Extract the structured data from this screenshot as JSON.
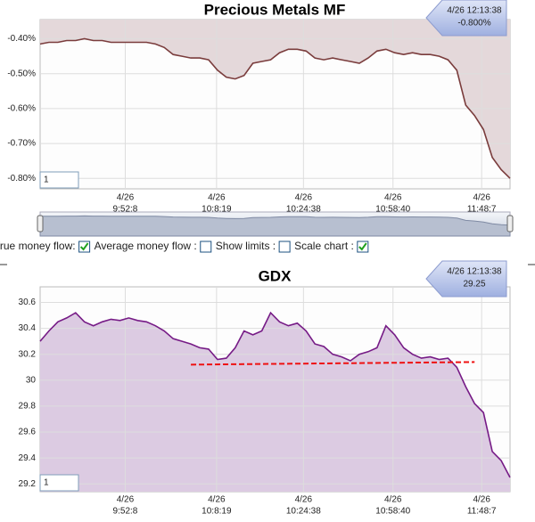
{
  "chart_data": [
    {
      "type": "line",
      "title": "Precious Metals MF",
      "values": [
        -0.415,
        -0.41,
        -0.41,
        -0.405,
        -0.405,
        -0.4,
        -0.405,
        -0.405,
        -0.41,
        -0.41,
        -0.41,
        -0.41,
        -0.41,
        -0.415,
        -0.425,
        -0.445,
        -0.45,
        -0.455,
        -0.455,
        -0.46,
        -0.49,
        -0.51,
        -0.515,
        -0.505,
        -0.47,
        -0.465,
        -0.46,
        -0.44,
        -0.43,
        -0.43,
        -0.435,
        -0.455,
        -0.46,
        -0.455,
        -0.46,
        -0.465,
        -0.47,
        -0.455,
        -0.435,
        -0.43,
        -0.44,
        -0.445,
        -0.44,
        -0.445,
        -0.445,
        -0.45,
        -0.46,
        -0.49,
        -0.59,
        -0.62,
        -0.66,
        -0.74,
        -0.775,
        -0.8
      ],
      "color": "#7a3c3c",
      "fill_color": "#e4d8da",
      "fill_to": "top",
      "xlim": [
        0,
        53
      ],
      "xticks": [
        {
          "value": 9.6,
          "label": [
            "4/26",
            "9:52:8"
          ]
        },
        {
          "value": 19.9,
          "label": [
            "4/26",
            "10:8:19"
          ]
        },
        {
          "value": 29.7,
          "label": [
            "4/26",
            "10:24:38"
          ]
        },
        {
          "value": 39.8,
          "label": [
            "4/26",
            "10:58:40"
          ]
        },
        {
          "value": 49.8,
          "label": [
            "4/26",
            "11:48:7"
          ]
        }
      ],
      "ylim": [
        -0.83,
        -0.345
      ],
      "yticks": [
        {
          "value": -0.4,
          "label": "-0.40%"
        },
        {
          "value": -0.5,
          "label": "-0.50%"
        },
        {
          "value": -0.6,
          "label": "-0.60%"
        },
        {
          "value": -0.7,
          "label": "-0.70%"
        },
        {
          "value": -0.8,
          "label": "-0.80%"
        }
      ],
      "grid": true,
      "last_time": "4/26 12:13:38",
      "last_value": "-0.800%",
      "zoom": "1"
    },
    {
      "type": "line",
      "title": "GDX",
      "values": [
        30.3,
        30.38,
        30.45,
        30.48,
        30.52,
        30.45,
        30.42,
        30.45,
        30.47,
        30.46,
        30.48,
        30.46,
        30.45,
        30.42,
        30.38,
        30.32,
        30.3,
        30.28,
        30.25,
        30.24,
        30.16,
        30.17,
        30.25,
        30.38,
        30.35,
        30.38,
        30.52,
        30.45,
        30.42,
        30.44,
        30.38,
        30.28,
        30.26,
        30.2,
        30.18,
        30.15,
        30.2,
        30.22,
        30.25,
        30.42,
        30.35,
        30.25,
        30.2,
        30.17,
        30.18,
        30.16,
        30.17,
        30.1,
        29.95,
        29.82,
        29.75,
        29.45,
        29.38,
        29.25
      ],
      "color": "#761b86",
      "fill_color": "#dccbe2",
      "fill_to": "bottom",
      "xlim": [
        0,
        53
      ],
      "xticks": [
        {
          "value": 9.6,
          "label": [
            "4/26",
            "9:52:8"
          ]
        },
        {
          "value": 19.9,
          "label": [
            "4/26",
            "10:8:19"
          ]
        },
        {
          "value": 29.7,
          "label": [
            "4/26",
            "10:24:38"
          ]
        },
        {
          "value": 39.8,
          "label": [
            "4/26",
            "10:58:40"
          ]
        },
        {
          "value": 49.8,
          "label": [
            "4/26",
            "11:48:7"
          ]
        }
      ],
      "ylim": [
        29.14,
        30.72
      ],
      "yticks": [
        30.6,
        30.4,
        30.2,
        30,
        29.8,
        29.6,
        29.4,
        29.2
      ],
      "grid": true,
      "last_time": "4/26 12:13:38",
      "last_value": "29.25",
      "zoom": "1",
      "reference_line": {
        "x": [
          17,
          49
        ],
        "values": [
          30.12,
          30.14
        ],
        "color": "#ee1111"
      }
    }
  ],
  "controls": [
    {
      "label": "True money flow:",
      "checked": true
    },
    {
      "label": "Average money flow :",
      "checked": false
    },
    {
      "label": "Show limits :",
      "checked": false
    },
    {
      "label": "Scale chart :",
      "checked": true
    }
  ]
}
